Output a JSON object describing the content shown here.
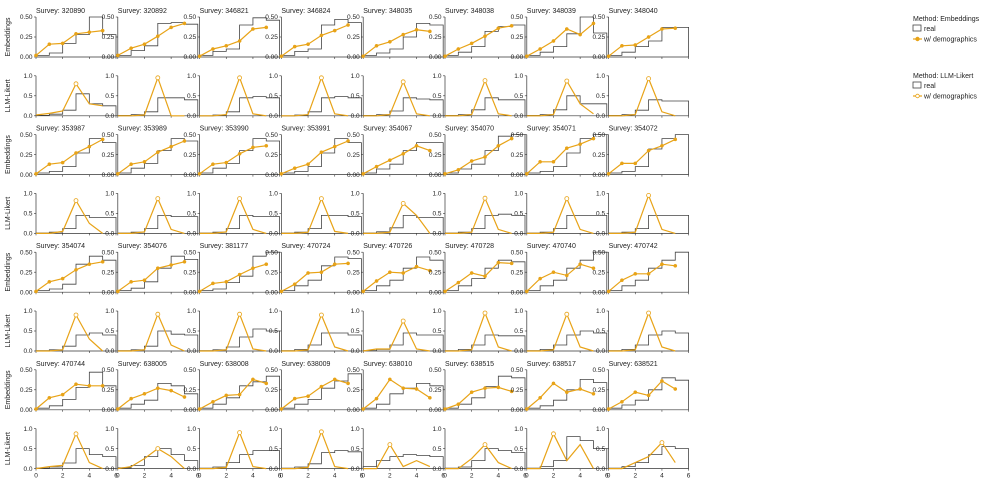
{
  "figure": {
    "row_labels": [
      "Embeddings",
      "LLM-Likert"
    ],
    "title_prefix": "Survey: "
  },
  "legends": [
    {
      "title": "Method: Embeddings",
      "items": [
        "real",
        "w/ demographics"
      ],
      "color": "#e8a317",
      "marker": "filled"
    },
    {
      "title": "Method: LLM-Likert",
      "items": [
        "real",
        "w/ demographics"
      ],
      "color": "#e8a317",
      "marker": "open"
    }
  ],
  "axes": {
    "x_ticks": [
      0,
      2,
      4,
      6
    ],
    "emb_y_ticks": [
      "0.00",
      "0.25",
      "0.50"
    ],
    "emb_ylim": [
      0,
      0.5
    ],
    "likert_y_ticks": [
      "0.0",
      "0.5",
      "1.0"
    ],
    "likert_ylim": [
      0,
      1
    ],
    "xlim": [
      0,
      6
    ]
  },
  "chart_data": [
    {
      "type": "line",
      "survey": "320890",
      "real": [
        0.02,
        0.05,
        0.17,
        0.28,
        0.55,
        0.28
      ],
      "emb": [
        0.02,
        0.16,
        0.17,
        0.29,
        0.31,
        0.33
      ],
      "likert": [
        0.02,
        0.06,
        0.12,
        0.8,
        0.3,
        0.25
      ],
      "real_l": [
        0.01,
        0.04,
        0.14,
        0.55,
        0.3,
        0.25
      ]
    },
    {
      "type": "line",
      "survey": "320892",
      "real": [
        0.02,
        0.08,
        0.14,
        0.42,
        0.43,
        0.41
      ],
      "emb": [
        0.02,
        0.11,
        0.16,
        0.26,
        0.37,
        0.42
      ],
      "likert": [
        0.0,
        0.0,
        0.02,
        0.95,
        0.0,
        0.0
      ],
      "real_l": [
        0.01,
        0.03,
        0.1,
        0.45,
        0.45,
        0.4
      ]
    },
    {
      "type": "line",
      "survey": "346821",
      "real": [
        0.02,
        0.07,
        0.1,
        0.4,
        0.49,
        0.46
      ],
      "emb": [
        0.01,
        0.1,
        0.14,
        0.2,
        0.35,
        0.37
      ],
      "likert": [
        0.0,
        0.0,
        0.03,
        0.95,
        0.05,
        0.0
      ],
      "real_l": [
        0.0,
        0.02,
        0.1,
        0.45,
        0.48,
        0.45
      ]
    },
    {
      "type": "line",
      "survey": "346824",
      "real": [
        0.02,
        0.07,
        0.1,
        0.4,
        0.47,
        0.43
      ],
      "emb": [
        0.01,
        0.13,
        0.16,
        0.27,
        0.33,
        0.4
      ],
      "likert": [
        0.0,
        0.0,
        0.03,
        0.95,
        0.05,
        0.0
      ],
      "real_l": [
        0.0,
        0.02,
        0.1,
        0.45,
        0.48,
        0.45
      ]
    },
    {
      "type": "line",
      "survey": "348035",
      "real": [
        0.02,
        0.05,
        0.1,
        0.25,
        0.42,
        0.4
      ],
      "emb": [
        0.01,
        0.14,
        0.19,
        0.28,
        0.34,
        0.32
      ],
      "likert": [
        0.0,
        0.0,
        0.03,
        0.85,
        0.05,
        0.0
      ],
      "real_l": [
        0.01,
        0.03,
        0.12,
        0.45,
        0.42,
        0.4
      ]
    },
    {
      "type": "line",
      "survey": "348038",
      "real": [
        0.02,
        0.06,
        0.13,
        0.32,
        0.38,
        0.4
      ],
      "emb": [
        0.01,
        0.1,
        0.17,
        0.26,
        0.36,
        0.39
      ],
      "likert": [
        0.0,
        0.0,
        0.03,
        0.88,
        0.05,
        0.0
      ],
      "real_l": [
        0.01,
        0.03,
        0.15,
        0.45,
        0.4,
        0.4
      ]
    },
    {
      "type": "line",
      "survey": "348039",
      "real": [
        0.02,
        0.06,
        0.13,
        0.29,
        0.5,
        0.3
      ],
      "emb": [
        0.01,
        0.1,
        0.2,
        0.35,
        0.28,
        0.42
      ],
      "likert": [
        0.0,
        0.0,
        0.03,
        0.87,
        0.3,
        0.05
      ],
      "real_l": [
        0.01,
        0.03,
        0.15,
        0.5,
        0.3,
        0.3
      ]
    },
    {
      "type": "line",
      "survey": "348040",
      "real": [
        0.02,
        0.06,
        0.13,
        0.2,
        0.37,
        0.37
      ],
      "emb": [
        0.01,
        0.14,
        0.15,
        0.25,
        0.35,
        0.36
      ],
      "likert": [
        0.0,
        0.0,
        0.03,
        0.93,
        0.1,
        0.0
      ],
      "real_l": [
        0.01,
        0.03,
        0.14,
        0.4,
        0.37,
        0.37
      ]
    },
    {
      "type": "line",
      "survey": "353987",
      "real": [
        0.02,
        0.04,
        0.1,
        0.27,
        0.45,
        0.4
      ],
      "emb": [
        0.01,
        0.13,
        0.15,
        0.27,
        0.35,
        0.44
      ],
      "likert": [
        0.0,
        0.0,
        0.05,
        0.82,
        0.25,
        0.0
      ],
      "real_l": [
        0.01,
        0.03,
        0.12,
        0.45,
        0.4,
        0.4
      ]
    },
    {
      "type": "line",
      "survey": "353989",
      "real": [
        0.02,
        0.08,
        0.14,
        0.3,
        0.45,
        0.42
      ],
      "emb": [
        0.01,
        0.13,
        0.16,
        0.28,
        0.35,
        0.42
      ],
      "likert": [
        0.0,
        0.0,
        0.04,
        0.87,
        0.1,
        0.0
      ],
      "real_l": [
        0.01,
        0.03,
        0.12,
        0.45,
        0.42,
        0.42
      ]
    },
    {
      "type": "line",
      "survey": "353990",
      "real": [
        0.02,
        0.08,
        0.14,
        0.3,
        0.45,
        0.42
      ],
      "emb": [
        0.01,
        0.13,
        0.15,
        0.26,
        0.34,
        0.36
      ],
      "likert": [
        0.0,
        0.0,
        0.04,
        0.87,
        0.1,
        0.0
      ],
      "real_l": [
        0.01,
        0.03,
        0.12,
        0.45,
        0.42,
        0.42
      ]
    },
    {
      "type": "line",
      "survey": "353991",
      "real": [
        0.02,
        0.04,
        0.1,
        0.27,
        0.45,
        0.4
      ],
      "emb": [
        0.01,
        0.08,
        0.13,
        0.28,
        0.35,
        0.42
      ],
      "likert": [
        0.0,
        0.0,
        0.03,
        0.87,
        0.05,
        0.0
      ],
      "real_l": [
        0.01,
        0.03,
        0.12,
        0.45,
        0.45,
        0.42
      ]
    },
    {
      "type": "line",
      "survey": "354067",
      "real": [
        0.02,
        0.07,
        0.13,
        0.3,
        0.4,
        0.4
      ],
      "emb": [
        0.01,
        0.1,
        0.18,
        0.26,
        0.36,
        0.3
      ],
      "likert": [
        0.0,
        0.0,
        0.03,
        0.75,
        0.45,
        0.0
      ],
      "real_l": [
        0.01,
        0.04,
        0.14,
        0.45,
        0.4,
        0.4
      ]
    },
    {
      "type": "line",
      "survey": "354070",
      "real": [
        0.02,
        0.07,
        0.13,
        0.3,
        0.48,
        0.5
      ],
      "emb": [
        0.01,
        0.06,
        0.17,
        0.22,
        0.36,
        0.45
      ],
      "likert": [
        0.0,
        0.0,
        0.03,
        0.88,
        0.1,
        0.0
      ],
      "real_l": [
        0.01,
        0.03,
        0.12,
        0.45,
        0.48,
        0.45
      ]
    },
    {
      "type": "line",
      "survey": "354071",
      "real": [
        0.02,
        0.04,
        0.1,
        0.27,
        0.45,
        0.5
      ],
      "emb": [
        0.01,
        0.16,
        0.16,
        0.33,
        0.38,
        0.45
      ],
      "likert": [
        0.0,
        0.0,
        0.03,
        0.87,
        0.1,
        0.0
      ],
      "real_l": [
        0.01,
        0.03,
        0.12,
        0.45,
        0.45,
        0.45
      ]
    },
    {
      "type": "line",
      "survey": "354072",
      "real": [
        0.02,
        0.04,
        0.1,
        0.32,
        0.45,
        0.5
      ],
      "emb": [
        0.01,
        0.14,
        0.14,
        0.3,
        0.36,
        0.44
      ],
      "likert": [
        0.0,
        0.0,
        0.03,
        0.95,
        0.1,
        0.0
      ],
      "real_l": [
        0.01,
        0.03,
        0.12,
        0.45,
        0.45,
        0.45
      ]
    },
    {
      "type": "line",
      "survey": "354074",
      "real": [
        0.02,
        0.04,
        0.1,
        0.35,
        0.45,
        0.4
      ],
      "emb": [
        0.01,
        0.13,
        0.17,
        0.28,
        0.35,
        0.38
      ],
      "likert": [
        0.0,
        0.0,
        0.03,
        0.9,
        0.3,
        0.0
      ],
      "real_l": [
        0.01,
        0.03,
        0.12,
        0.4,
        0.45,
        0.4
      ]
    },
    {
      "type": "line",
      "survey": "354076",
      "real": [
        0.02,
        0.05,
        0.13,
        0.3,
        0.45,
        0.41
      ],
      "emb": [
        0.01,
        0.13,
        0.15,
        0.3,
        0.34,
        0.38
      ],
      "likert": [
        0.0,
        0.0,
        0.03,
        0.92,
        0.15,
        0.0
      ],
      "real_l": [
        0.01,
        0.03,
        0.12,
        0.5,
        0.42,
        0.4
      ]
    },
    {
      "type": "line",
      "survey": "381177",
      "real": [
        0.02,
        0.04,
        0.12,
        0.2,
        0.45,
        0.52
      ],
      "emb": [
        0.01,
        0.11,
        0.13,
        0.22,
        0.3,
        0.35
      ],
      "likert": [
        0.0,
        0.0,
        0.03,
        0.92,
        0.05,
        0.0
      ],
      "real_l": [
        0.01,
        0.03,
        0.1,
        0.35,
        0.55,
        0.5
      ]
    },
    {
      "type": "line",
      "survey": "470724",
      "real": [
        0.02,
        0.08,
        0.15,
        0.33,
        0.44,
        0.42
      ],
      "emb": [
        0.01,
        0.1,
        0.24,
        0.25,
        0.35,
        0.36
      ],
      "likert": [
        0.0,
        0.0,
        0.03,
        0.9,
        0.1,
        0.0
      ],
      "real_l": [
        0.01,
        0.04,
        0.15,
        0.45,
        0.45,
        0.4
      ]
    },
    {
      "type": "line",
      "survey": "470726",
      "real": [
        0.02,
        0.08,
        0.15,
        0.3,
        0.44,
        0.4
      ],
      "emb": [
        0.01,
        0.14,
        0.25,
        0.24,
        0.32,
        0.27
      ],
      "likert": [
        0.0,
        0.05,
        0.05,
        0.75,
        0.05,
        0.0
      ],
      "real_l": [
        0.01,
        0.04,
        0.15,
        0.45,
        0.4,
        0.4
      ]
    },
    {
      "type": "line",
      "survey": "470728",
      "real": [
        0.02,
        0.08,
        0.17,
        0.3,
        0.4,
        0.38
      ],
      "emb": [
        0.01,
        0.12,
        0.24,
        0.2,
        0.37,
        0.36
      ],
      "likert": [
        0.0,
        0.0,
        0.03,
        0.95,
        0.1,
        0.0
      ],
      "real_l": [
        0.01,
        0.04,
        0.15,
        0.4,
        0.38,
        0.38
      ]
    },
    {
      "type": "line",
      "survey": "470740",
      "real": [
        0.02,
        0.08,
        0.15,
        0.3,
        0.4,
        0.5
      ],
      "emb": [
        0.01,
        0.17,
        0.25,
        0.21,
        0.35,
        0.3
      ],
      "likert": [
        0.0,
        0.0,
        0.03,
        0.92,
        0.1,
        0.0
      ],
      "real_l": [
        0.01,
        0.04,
        0.15,
        0.4,
        0.5,
        0.45
      ]
    },
    {
      "type": "line",
      "survey": "470742",
      "real": [
        0.02,
        0.08,
        0.15,
        0.3,
        0.4,
        0.5
      ],
      "emb": [
        0.01,
        0.15,
        0.23,
        0.23,
        0.35,
        0.33
      ],
      "likert": [
        0.0,
        0.0,
        0.03,
        0.95,
        0.1,
        0.0
      ],
      "real_l": [
        0.01,
        0.04,
        0.15,
        0.4,
        0.5,
        0.45
      ]
    },
    {
      "type": "line",
      "survey": "470744",
      "real": [
        0.02,
        0.05,
        0.13,
        0.28,
        0.47,
        0.3
      ],
      "emb": [
        0.01,
        0.15,
        0.19,
        0.32,
        0.3,
        0.3
      ],
      "likert": [
        0.0,
        0.05,
        0.08,
        0.87,
        0.15,
        0.0
      ],
      "real_l": [
        0.01,
        0.04,
        0.14,
        0.5,
        0.35,
        0.3
      ]
    },
    {
      "type": "line",
      "survey": "638005",
      "real": [
        0.02,
        0.07,
        0.12,
        0.33,
        0.3,
        0.2
      ],
      "emb": [
        0.01,
        0.14,
        0.2,
        0.27,
        0.24,
        0.16
      ],
      "likert": [
        0.0,
        0.05,
        0.25,
        0.5,
        0.3,
        0.0
      ],
      "real_l": [
        0.02,
        0.08,
        0.3,
        0.5,
        0.35,
        0.2
      ]
    },
    {
      "type": "line",
      "survey": "638008",
      "real": [
        0.02,
        0.07,
        0.15,
        0.3,
        0.35,
        0.42
      ],
      "emb": [
        0.01,
        0.1,
        0.18,
        0.19,
        0.38,
        0.33
      ],
      "likert": [
        0.0,
        0.0,
        0.03,
        0.9,
        0.05,
        0.0
      ],
      "real_l": [
        0.01,
        0.04,
        0.15,
        0.35,
        0.45,
        0.45
      ]
    },
    {
      "type": "line",
      "survey": "638009",
      "real": [
        0.02,
        0.07,
        0.13,
        0.27,
        0.36,
        0.45
      ],
      "emb": [
        0.01,
        0.14,
        0.17,
        0.29,
        0.38,
        0.33
      ],
      "likert": [
        0.0,
        0.0,
        0.03,
        0.92,
        0.05,
        0.0
      ],
      "real_l": [
        0.01,
        0.04,
        0.12,
        0.4,
        0.45,
        0.42
      ]
    },
    {
      "type": "line",
      "survey": "638010",
      "real": [
        0.02,
        0.07,
        0.2,
        0.27,
        0.33,
        0.3
      ],
      "emb": [
        0.01,
        0.14,
        0.38,
        0.27,
        0.26,
        0.15
      ],
      "likert": [
        0.0,
        0.0,
        0.6,
        0.05,
        0.2,
        0.05
      ],
      "real_l": [
        0.05,
        0.2,
        0.3,
        0.35,
        0.33,
        0.3
      ]
    },
    {
      "type": "line",
      "survey": "638515",
      "real": [
        0.02,
        0.07,
        0.15,
        0.29,
        0.42,
        0.4
      ],
      "emb": [
        0.01,
        0.07,
        0.22,
        0.27,
        0.28,
        0.23
      ],
      "likert": [
        0.0,
        0.0,
        0.25,
        0.6,
        0.15,
        0.0
      ],
      "real_l": [
        0.01,
        0.04,
        0.2,
        0.5,
        0.45,
        0.4
      ]
    },
    {
      "type": "line",
      "survey": "638517",
      "real": [
        0.02,
        0.05,
        0.12,
        0.25,
        0.38,
        0.34
      ],
      "emb": [
        0.01,
        0.15,
        0.33,
        0.22,
        0.26,
        0.2
      ],
      "likert": [
        0.0,
        0.0,
        0.87,
        0.2,
        0.6,
        0.0
      ],
      "real_l": [
        0.01,
        0.05,
        0.2,
        0.8,
        0.7,
        0.5
      ]
    },
    {
      "type": "line",
      "survey": "638521",
      "real": [
        0.02,
        0.06,
        0.12,
        0.25,
        0.4,
        0.37
      ],
      "emb": [
        0.01,
        0.1,
        0.22,
        0.18,
        0.36,
        0.26
      ],
      "likert": [
        0.0,
        0.0,
        0.15,
        0.3,
        0.65,
        0.15
      ],
      "real_l": [
        0.01,
        0.05,
        0.15,
        0.35,
        0.55,
        0.5
      ]
    }
  ]
}
